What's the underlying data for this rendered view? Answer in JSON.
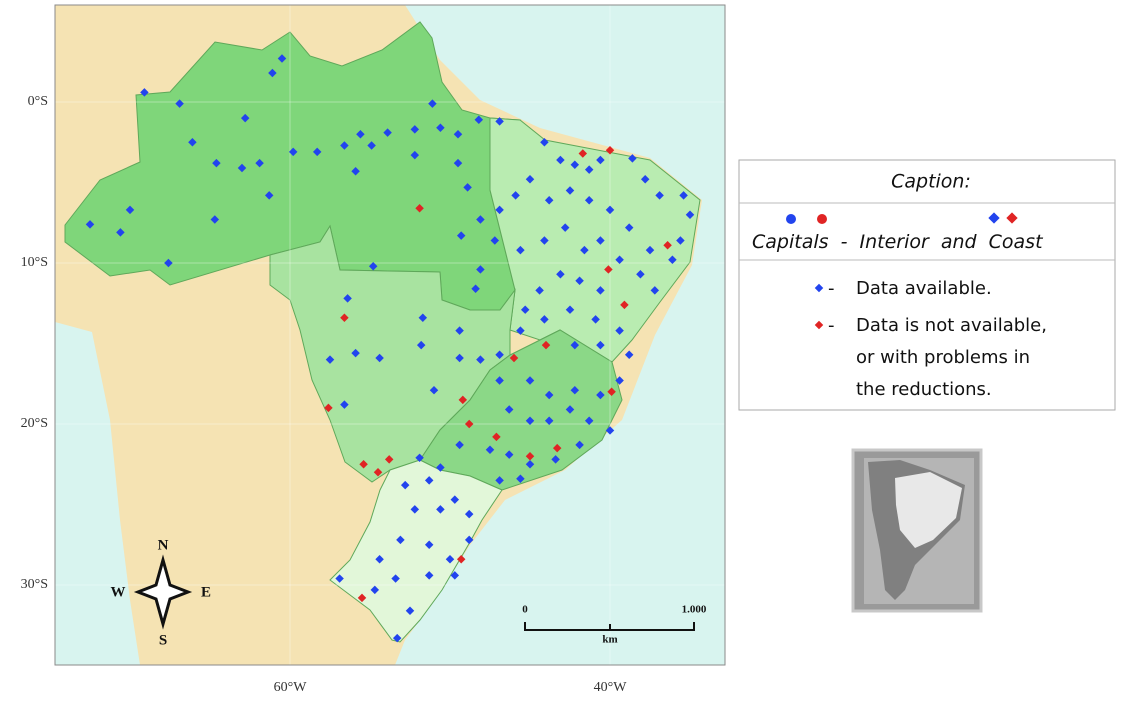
{
  "map": {
    "xticks": [
      {
        "value": -60,
        "label": "60°W"
      },
      {
        "value": -40,
        "label": "40°W"
      }
    ],
    "yticks": [
      {
        "value": 0,
        "label": "0°S"
      },
      {
        "value": -10,
        "label": "10°S"
      },
      {
        "value": -20,
        "label": "20°S"
      },
      {
        "value": -30,
        "label": "30°S"
      }
    ],
    "compass": {
      "north": "N",
      "south": "S",
      "east": "E",
      "west": "W"
    },
    "scale_bar": {
      "start": "0",
      "end": "1.000",
      "unit": "km"
    },
    "colors": {
      "available": "#2244ee",
      "unavailable": "#e02424"
    },
    "stations_available": [
      [
        -60.5,
        2.7
      ],
      [
        -61.1,
        1.8
      ],
      [
        -69.1,
        0.6
      ],
      [
        -66.9,
        -0.1
      ],
      [
        -62.8,
        -1.0
      ],
      [
        -66.1,
        -2.5
      ],
      [
        -64.6,
        -3.8
      ],
      [
        -63.0,
        -4.1
      ],
      [
        -61.9,
        -3.8
      ],
      [
        -59.8,
        -3.1
      ],
      [
        -58.3,
        -3.1
      ],
      [
        -56.6,
        -2.7
      ],
      [
        -55.6,
        -2.0
      ],
      [
        -54.9,
        -2.7
      ],
      [
        -53.9,
        -1.9
      ],
      [
        -52.2,
        -1.7
      ],
      [
        -52.2,
        -3.3
      ],
      [
        -50.6,
        -1.6
      ],
      [
        -49.5,
        -2.0
      ],
      [
        -49.5,
        -3.8
      ],
      [
        -51.1,
        -0.1
      ],
      [
        -48.9,
        -5.3
      ],
      [
        -55.9,
        -4.3
      ],
      [
        -61.3,
        -5.8
      ],
      [
        -64.7,
        -7.3
      ],
      [
        -70.0,
        -6.7
      ],
      [
        -70.6,
        -8.1
      ],
      [
        -72.5,
        -7.6
      ],
      [
        -67.6,
        -10.0
      ],
      [
        -48.2,
        -1.1
      ],
      [
        -46.9,
        -1.2
      ],
      [
        -44.1,
        -2.5
      ],
      [
        -43.1,
        -3.6
      ],
      [
        -42.2,
        -3.9
      ],
      [
        -41.3,
        -4.2
      ],
      [
        -40.6,
        -3.6
      ],
      [
        -38.6,
        -3.5
      ],
      [
        -37.8,
        -4.8
      ],
      [
        -36.9,
        -5.8
      ],
      [
        -35.4,
        -5.8
      ],
      [
        -35.0,
        -7.0
      ],
      [
        -35.6,
        -8.6
      ],
      [
        -36.1,
        -9.8
      ],
      [
        -37.5,
        -9.2
      ],
      [
        -38.8,
        -7.8
      ],
      [
        -40.0,
        -6.7
      ],
      [
        -41.3,
        -6.1
      ],
      [
        -42.5,
        -5.5
      ],
      [
        -43.8,
        -6.1
      ],
      [
        -45.0,
        -4.8
      ],
      [
        -45.9,
        -5.8
      ],
      [
        -46.9,
        -6.7
      ],
      [
        -47.2,
        -8.6
      ],
      [
        -45.6,
        -9.2
      ],
      [
        -44.1,
        -8.6
      ],
      [
        -42.8,
        -7.8
      ],
      [
        -41.6,
        -9.2
      ],
      [
        -40.6,
        -8.6
      ],
      [
        -39.4,
        -9.8
      ],
      [
        -38.1,
        -10.7
      ],
      [
        -37.2,
        -11.7
      ],
      [
        -40.6,
        -11.7
      ],
      [
        -41.9,
        -11.1
      ],
      [
        -43.1,
        -10.7
      ],
      [
        -44.4,
        -11.7
      ],
      [
        -45.3,
        -12.9
      ],
      [
        -44.1,
        -13.5
      ],
      [
        -42.5,
        -12.9
      ],
      [
        -40.9,
        -13.5
      ],
      [
        -39.4,
        -14.2
      ],
      [
        -38.8,
        -15.7
      ],
      [
        -39.4,
        -17.3
      ],
      [
        -40.6,
        -15.1
      ],
      [
        -42.2,
        -15.1
      ],
      [
        -48.1,
        -7.3
      ],
      [
        -48.1,
        -10.4
      ],
      [
        -48.4,
        -11.6
      ],
      [
        -49.3,
        -8.3
      ],
      [
        -54.8,
        -10.2
      ],
      [
        -56.4,
        -12.2
      ],
      [
        -57.5,
        -16.0
      ],
      [
        -55.9,
        -15.6
      ],
      [
        -54.4,
        -15.9
      ],
      [
        -56.6,
        -18.8
      ],
      [
        -51.7,
        -13.4
      ],
      [
        -51.8,
        -15.1
      ],
      [
        -51.0,
        -17.9
      ],
      [
        -49.4,
        -15.9
      ],
      [
        -48.1,
        -16.0
      ],
      [
        -46.9,
        -15.7
      ],
      [
        -45.6,
        -14.2
      ],
      [
        -49.4,
        -14.2
      ],
      [
        -46.9,
        -17.3
      ],
      [
        -45.0,
        -17.3
      ],
      [
        -43.8,
        -18.2
      ],
      [
        -42.2,
        -17.9
      ],
      [
        -40.6,
        -18.2
      ],
      [
        -41.3,
        -19.8
      ],
      [
        -42.5,
        -19.1
      ],
      [
        -43.8,
        -19.8
      ],
      [
        -45.0,
        -19.8
      ],
      [
        -46.3,
        -19.1
      ],
      [
        -47.5,
        -21.6
      ],
      [
        -46.3,
        -21.9
      ],
      [
        -45.0,
        -22.5
      ],
      [
        -43.4,
        -22.2
      ],
      [
        -41.9,
        -21.3
      ],
      [
        -40.0,
        -20.4
      ],
      [
        -45.6,
        -23.4
      ],
      [
        -46.9,
        -23.5
      ],
      [
        -49.4,
        -21.3
      ],
      [
        -50.6,
        -22.7
      ],
      [
        -51.9,
        -22.1
      ],
      [
        -51.3,
        -23.5
      ],
      [
        -52.8,
        -23.8
      ],
      [
        -49.7,
        -24.7
      ],
      [
        -50.6,
        -25.3
      ],
      [
        -48.8,
        -25.6
      ],
      [
        -52.2,
        -25.3
      ],
      [
        -53.1,
        -27.2
      ],
      [
        -51.3,
        -27.5
      ],
      [
        -50.0,
        -28.4
      ],
      [
        -48.8,
        -27.2
      ],
      [
        -54.4,
        -28.4
      ],
      [
        -53.4,
        -29.6
      ],
      [
        -51.3,
        -29.4
      ],
      [
        -49.7,
        -29.4
      ],
      [
        -52.5,
        -31.6
      ],
      [
        -56.9,
        -29.6
      ],
      [
        -53.3,
        -33.3
      ],
      [
        -54.7,
        -30.3
      ]
    ],
    "stations_unavailable": [
      [
        -40.0,
        -3.0
      ],
      [
        -41.7,
        -3.2
      ],
      [
        -51.9,
        -6.6
      ],
      [
        -36.4,
        -8.9
      ],
      [
        -40.1,
        -10.4
      ],
      [
        -39.1,
        -12.6
      ],
      [
        -56.6,
        -13.4
      ],
      [
        -46.0,
        -15.9
      ],
      [
        -44.0,
        -15.1
      ],
      [
        -39.9,
        -18.0
      ],
      [
        -57.6,
        -19.0
      ],
      [
        -49.2,
        -18.5
      ],
      [
        -48.8,
        -20.0
      ],
      [
        -47.1,
        -20.8
      ],
      [
        -45.0,
        -22.0
      ],
      [
        -43.3,
        -21.5
      ],
      [
        -55.4,
        -22.5
      ],
      [
        -54.5,
        -23.0
      ],
      [
        -53.8,
        -22.2
      ],
      [
        -49.3,
        -28.4
      ],
      [
        -55.5,
        -30.8
      ]
    ]
  },
  "caption": {
    "title": "Caption:",
    "symbols": [
      "Capitals",
      "-",
      "Interior",
      "and",
      "Coast"
    ],
    "dash": "-",
    "available": [
      "Data available."
    ],
    "unavailable": [
      "Data is not available,",
      "or with problems in",
      "the reductions."
    ]
  }
}
